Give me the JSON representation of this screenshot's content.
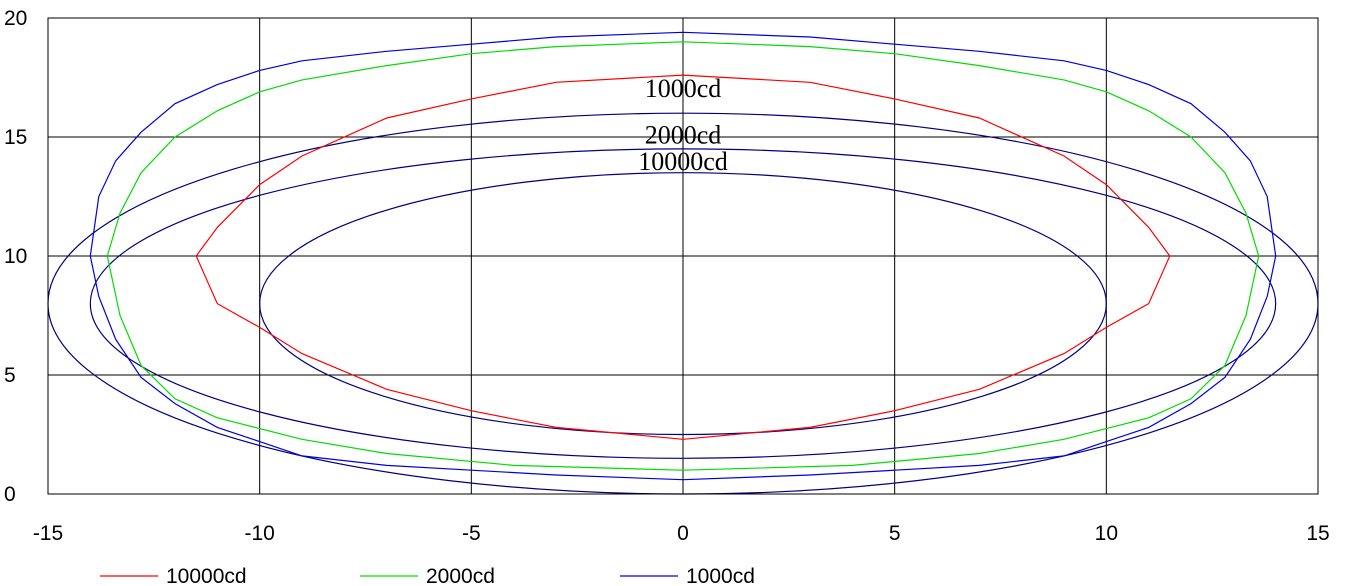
{
  "chart_data": {
    "type": "line",
    "title": "",
    "xlabel": "",
    "ylabel": "",
    "xlim": [
      -15,
      15
    ],
    "ylim": [
      0,
      20
    ],
    "xticks": [
      -15,
      -10,
      -5,
      0,
      5,
      10,
      15
    ],
    "xtick_labels": [
      "-15",
      "-10",
      "-5",
      "0",
      "5",
      "10",
      "15"
    ],
    "yticks": [
      0,
      5,
      10,
      15,
      20
    ],
    "ytick_labels": [
      "0",
      "5",
      "10",
      "15",
      "20"
    ],
    "grid": true,
    "legend_position": "bottom",
    "series": [
      {
        "name": "10000cd",
        "color": "#ff0000",
        "points": [
          [
            0,
            2.3
          ],
          [
            3,
            2.8
          ],
          [
            5,
            3.5
          ],
          [
            7,
            4.4
          ],
          [
            9,
            5.9
          ],
          [
            10,
            7.0
          ],
          [
            11,
            8.0
          ],
          [
            11.5,
            10.0
          ],
          [
            11,
            11.2
          ],
          [
            10,
            13.0
          ],
          [
            9,
            14.2
          ],
          [
            7,
            15.8
          ],
          [
            5,
            16.6
          ],
          [
            3,
            17.3
          ],
          [
            0,
            17.6
          ],
          [
            -3,
            17.3
          ],
          [
            -5,
            16.6
          ],
          [
            -7,
            15.8
          ],
          [
            -9,
            14.2
          ],
          [
            -10,
            13.0
          ],
          [
            -11,
            11.2
          ],
          [
            -11.5,
            10.0
          ],
          [
            -11,
            8.0
          ],
          [
            -10,
            7.0
          ],
          [
            -9,
            5.9
          ],
          [
            -7,
            4.4
          ],
          [
            -5,
            3.5
          ],
          [
            -3,
            2.8
          ],
          [
            0,
            2.3
          ]
        ]
      },
      {
        "name": "2000cd",
        "color": "#00dd00",
        "points": [
          [
            0,
            1.0
          ],
          [
            4,
            1.2
          ],
          [
            7,
            1.7
          ],
          [
            9,
            2.3
          ],
          [
            11,
            3.2
          ],
          [
            12,
            4.0
          ],
          [
            12.8,
            5.4
          ],
          [
            13.3,
            7.5
          ],
          [
            13.6,
            10.0
          ],
          [
            13.3,
            11.8
          ],
          [
            12.8,
            13.5
          ],
          [
            12,
            15.0
          ],
          [
            11,
            16.1
          ],
          [
            10,
            16.9
          ],
          [
            9,
            17.4
          ],
          [
            7,
            18.0
          ],
          [
            5,
            18.5
          ],
          [
            3,
            18.8
          ],
          [
            0,
            19.0
          ],
          [
            -3,
            18.8
          ],
          [
            -5,
            18.5
          ],
          [
            -7,
            18.0
          ],
          [
            -9,
            17.4
          ],
          [
            -10,
            16.9
          ],
          [
            -11,
            16.1
          ],
          [
            -12,
            15.0
          ],
          [
            -12.8,
            13.5
          ],
          [
            -13.3,
            11.8
          ],
          [
            -13.6,
            10.0
          ],
          [
            -13.3,
            7.5
          ],
          [
            -12.8,
            5.4
          ],
          [
            -12,
            4.0
          ],
          [
            -11,
            3.2
          ],
          [
            -9,
            2.3
          ],
          [
            -7,
            1.7
          ],
          [
            -4,
            1.2
          ],
          [
            0,
            1.0
          ]
        ]
      },
      {
        "name": "1000cd",
        "color": "#0000dd",
        "points": [
          [
            0,
            0.6
          ],
          [
            3,
            0.8
          ],
          [
            5,
            1.0
          ],
          [
            7,
            1.2
          ],
          [
            9,
            1.6
          ],
          [
            10,
            2.2
          ],
          [
            11,
            2.8
          ],
          [
            12,
            3.8
          ],
          [
            12.8,
            4.9
          ],
          [
            13.4,
            6.5
          ],
          [
            13.8,
            8.3
          ],
          [
            14,
            10.0
          ],
          [
            13.8,
            12.5
          ],
          [
            13.4,
            14.0
          ],
          [
            12.8,
            15.2
          ],
          [
            12,
            16.4
          ],
          [
            11,
            17.2
          ],
          [
            10,
            17.8
          ],
          [
            9,
            18.2
          ],
          [
            7,
            18.6
          ],
          [
            5,
            18.9
          ],
          [
            3,
            19.2
          ],
          [
            0,
            19.4
          ],
          [
            -3,
            19.2
          ],
          [
            -5,
            18.9
          ],
          [
            -7,
            18.6
          ],
          [
            -9,
            18.2
          ],
          [
            -10,
            17.8
          ],
          [
            -11,
            17.2
          ],
          [
            -12,
            16.4
          ],
          [
            -12.8,
            15.2
          ],
          [
            -13.4,
            14.0
          ],
          [
            -13.8,
            12.5
          ],
          [
            -14,
            10.0
          ],
          [
            -13.8,
            8.3
          ],
          [
            -13.4,
            6.5
          ],
          [
            -12.8,
            4.9
          ],
          [
            -12,
            3.8
          ],
          [
            -11,
            2.8
          ],
          [
            -10,
            2.2
          ],
          [
            -9,
            1.6
          ],
          [
            -7,
            1.2
          ],
          [
            -5,
            1.0
          ],
          [
            -3,
            0.8
          ],
          [
            0,
            0.6
          ]
        ]
      }
    ],
    "ellipses": [
      {
        "label": "1000cd",
        "color": "#000080",
        "cx": 0,
        "cy": 8,
        "rx": 15,
        "ry": 8,
        "label_x": 0,
        "label_y": 17.05
      },
      {
        "label": "2000cd",
        "color": "#000080",
        "cx": 0,
        "cy": 8,
        "rx": 14,
        "ry": 6.5,
        "label_x": 0,
        "label_y": 15.1
      },
      {
        "label": "10000cd",
        "color": "#000080",
        "cx": 0,
        "cy": 8,
        "rx": 10,
        "ry": 5.5,
        "label_x": 0,
        "label_y": 14.0
      }
    ]
  }
}
